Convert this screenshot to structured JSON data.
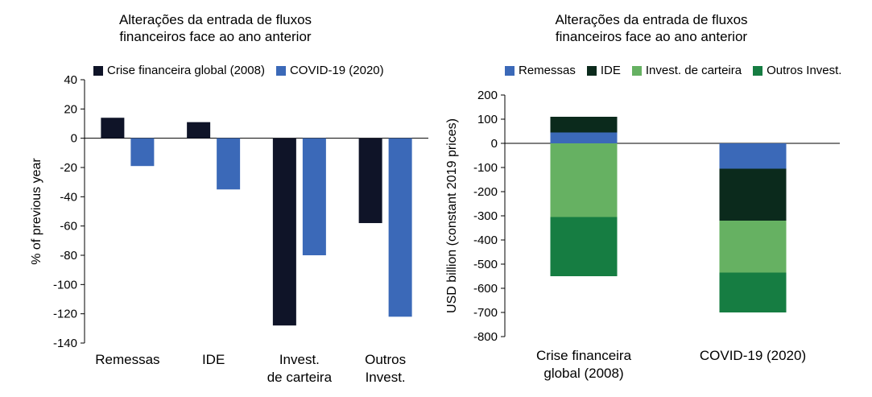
{
  "charts": [
    {
      "title": "Alterações da entrada de fluxos\nfinanceiros face ao ano anterior",
      "chart_data": {
        "type": "bar",
        "title": "Alterações da entrada de fluxos financeiros face ao ano anterior",
        "ylabel": "% of previous year",
        "xlabel": "",
        "categories": [
          "Remessas",
          "IDE",
          "Invest.\nde carteira",
          "Outros\nInvest."
        ],
        "series": [
          {
            "name": "Crise financeira global (2008)",
            "color": "#0f1428",
            "values": [
              14,
              11,
              -128,
              -58
            ]
          },
          {
            "name": "COVID-19 (2020)",
            "color": "#3b69b8",
            "values": [
              -19,
              -35,
              -80,
              -122
            ]
          }
        ],
        "ylim": [
          -140,
          40
        ],
        "yticks": [
          40,
          20,
          0,
          -20,
          -40,
          -60,
          -80,
          -100,
          -120,
          -140
        ],
        "grid": false,
        "legend": "top"
      }
    },
    {
      "title": "Alterações da entrada de fluxos\nfinanceiros face ao ano anterior",
      "chart_data": {
        "type": "bar",
        "stacked": true,
        "title": "Alterações da entrada de fluxos financeiros face ao ano anterior",
        "ylabel": "USD billion (constant 2019 prices)",
        "xlabel": "",
        "categories": [
          "Crise financeira\nglobal (2008)",
          "COVID-19 (2020)"
        ],
        "series": [
          {
            "name": "Remessas",
            "color": "#3b69b8",
            "values": [
              45,
              -105
            ]
          },
          {
            "name": "IDE",
            "color": "#0b2a1c",
            "values": [
              65,
              -215
            ]
          },
          {
            "name": "Invest. de carteira",
            "color": "#66b162",
            "values": [
              -305,
              -215
            ]
          },
          {
            "name": "Outros Invest.",
            "color": "#167d42",
            "values": [
              -245,
              -165
            ]
          }
        ],
        "ylim": [
          -800,
          200
        ],
        "yticks": [
          200,
          100,
          0,
          -100,
          -200,
          -300,
          -400,
          -500,
          -600,
          -700,
          -800
        ],
        "grid": false,
        "legend": "top"
      }
    }
  ]
}
